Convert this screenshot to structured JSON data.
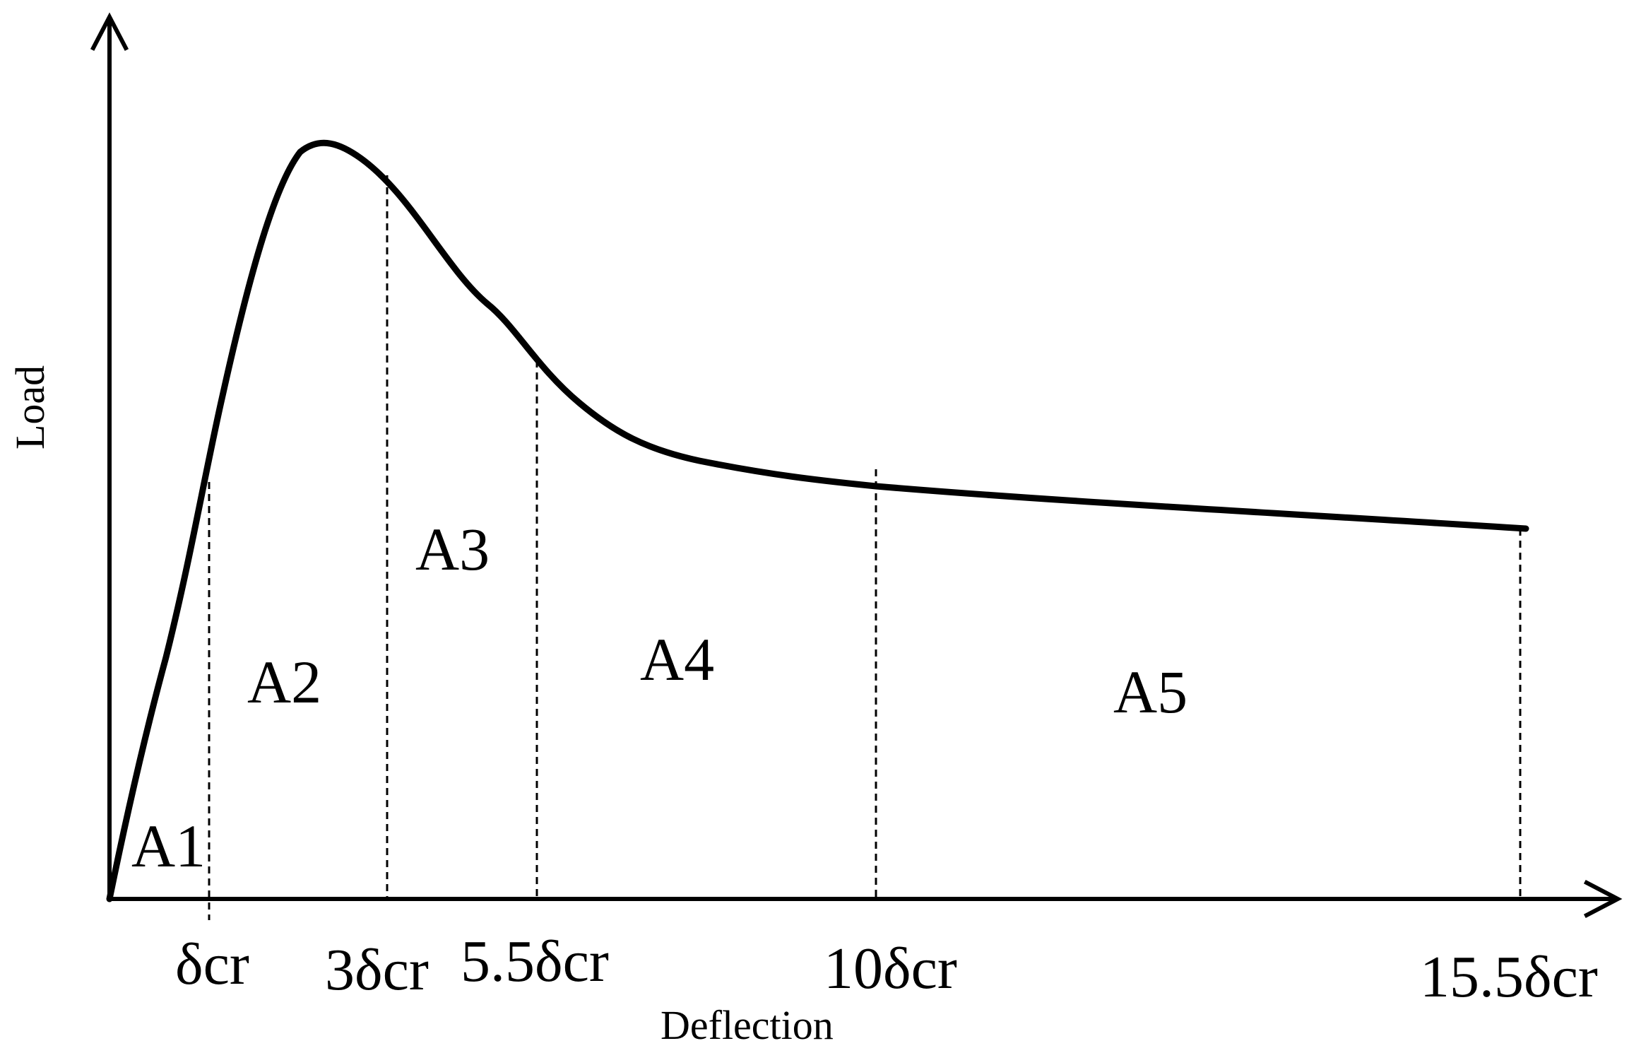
{
  "diagram": {
    "axes": {
      "y_title": "Load",
      "x_title": "Deflection"
    },
    "boundaries": [
      {
        "id": "d1",
        "label": "δcr"
      },
      {
        "id": "d3",
        "label": "3δcr"
      },
      {
        "id": "d55",
        "label": "5.5δcr"
      },
      {
        "id": "d10",
        "label": "10δcr"
      },
      {
        "id": "d155",
        "label": "15.5δcr"
      }
    ],
    "regions": [
      {
        "id": "A1",
        "label": "A1"
      },
      {
        "id": "A2",
        "label": "A2"
      },
      {
        "id": "A3",
        "label": "A3"
      },
      {
        "id": "A4",
        "label": "A4"
      },
      {
        "id": "A5",
        "label": "A5"
      }
    ],
    "colors": {
      "line": "#000000",
      "background": "#ffffff"
    }
  }
}
